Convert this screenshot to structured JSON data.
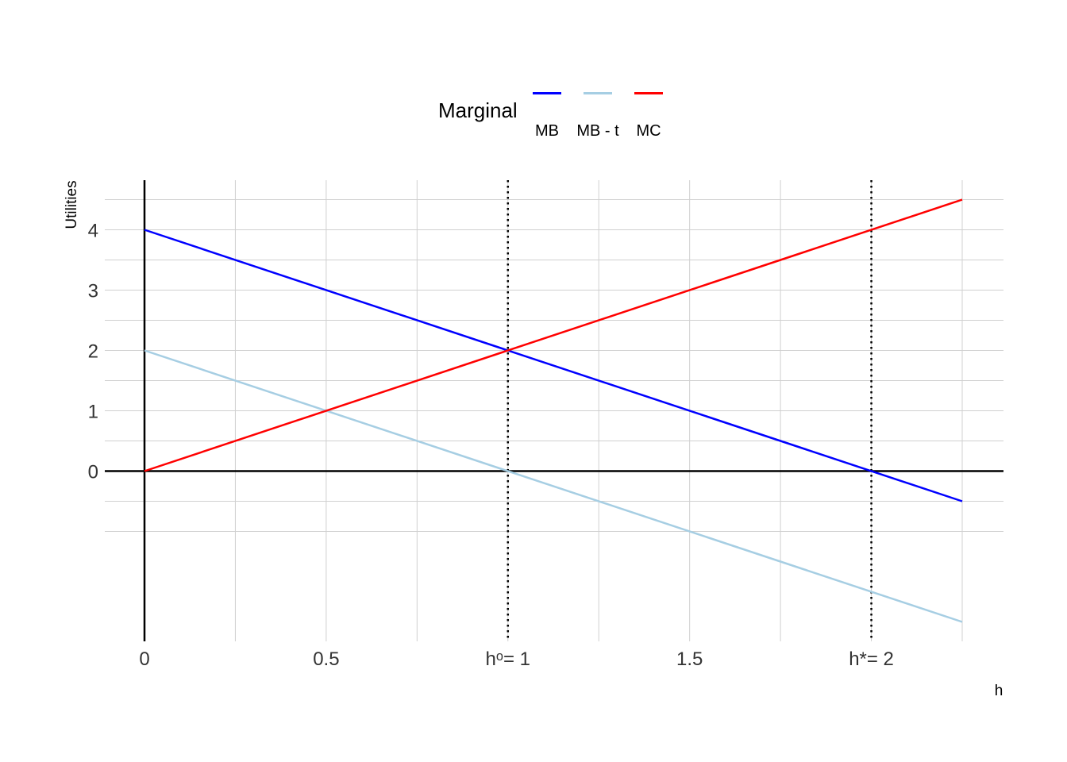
{
  "chart_data": {
    "type": "line",
    "xlabel": "h",
    "ylabel": "Utilities",
    "xlim": [
      0,
      2.25
    ],
    "ylim": [
      -2.5,
      4.5
    ],
    "grid": true,
    "legend": {
      "title": "Marginal",
      "placement": "top-center"
    },
    "series": [
      {
        "name": "MB",
        "color": "#0000ff",
        "x": [
          0,
          2.25
        ],
        "y": [
          4,
          -0.5
        ]
      },
      {
        "name": "MB - t",
        "color": "#a6cee3",
        "x": [
          0,
          2.25
        ],
        "y": [
          2,
          -2.5
        ]
      },
      {
        "name": "MC",
        "color": "#ff0000",
        "x": [
          0,
          2.25
        ],
        "y": [
          0,
          4.5
        ]
      }
    ],
    "x_ticks": [
      {
        "value": 0,
        "label": "0"
      },
      {
        "value": 0.5,
        "label": "0.5"
      },
      {
        "value": 1,
        "label": "hᵒ= 1"
      },
      {
        "value": 1.5,
        "label": "1.5"
      },
      {
        "value": 2,
        "label": "h*= 2"
      }
    ],
    "y_ticks": [
      {
        "value": 0,
        "label": "0"
      },
      {
        "value": 1,
        "label": "1"
      },
      {
        "value": 2,
        "label": "2"
      },
      {
        "value": 3,
        "label": "3"
      },
      {
        "value": 4,
        "label": "4"
      }
    ],
    "vlines": [
      {
        "x": 1,
        "style": "dotted"
      },
      {
        "x": 2,
        "style": "dotted"
      }
    ],
    "reference_lines": {
      "x_zero": true,
      "y_zero": true
    }
  }
}
